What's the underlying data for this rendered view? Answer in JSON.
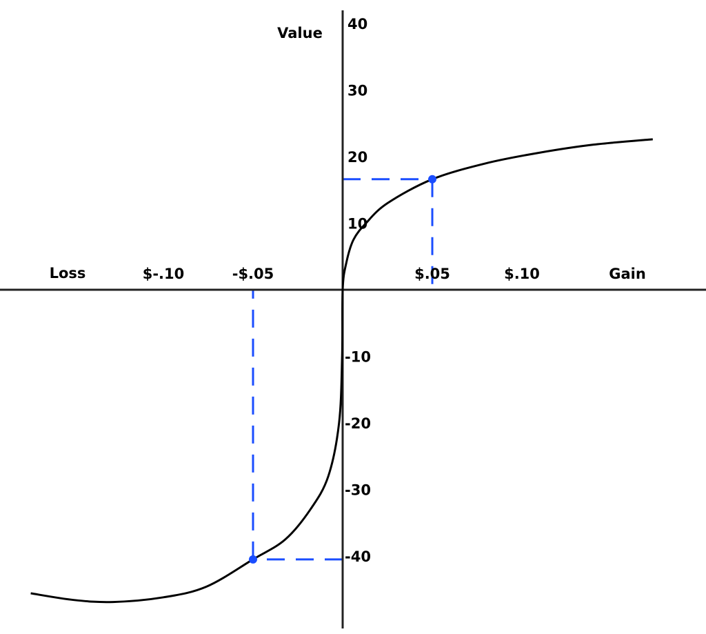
{
  "chart_data": {
    "type": "line",
    "title": "",
    "ylabel": "Value",
    "x_axis_labels": {
      "negative_end": "Loss",
      "positive_end": "Gain"
    },
    "x_ticks": [
      {
        "value": -0.1,
        "label": "$-.10"
      },
      {
        "value": -0.05,
        "label": "-$.05"
      },
      {
        "value": 0.05,
        "label": "$.05"
      },
      {
        "value": 0.1,
        "label": "$.10"
      }
    ],
    "y_ticks": [
      {
        "value": 40,
        "label": "40"
      },
      {
        "value": 30,
        "label": "30"
      },
      {
        "value": 20,
        "label": "20"
      },
      {
        "value": 10,
        "label": "10"
      },
      {
        "value": -10,
        "label": "-10"
      },
      {
        "value": -20,
        "label": "-20"
      },
      {
        "value": -30,
        "label": "-30"
      },
      {
        "value": -40,
        "label": "-40"
      }
    ],
    "xlim": [
      -0.19,
      0.2
    ],
    "ylim": [
      -51,
      42
    ],
    "grid": false,
    "series": [
      {
        "color": "#000000",
        "points": [
          [
            -0.174,
            -45.6
          ],
          [
            -0.15,
            -46.6
          ],
          [
            -0.128,
            -46.9
          ],
          [
            -0.1,
            -46.2
          ],
          [
            -0.076,
            -44.6
          ],
          [
            -0.05,
            -40.5
          ],
          [
            -0.032,
            -37.5
          ],
          [
            -0.018,
            -33
          ],
          [
            -0.008,
            -28
          ],
          [
            -0.002,
            -20
          ],
          [
            -0.0003,
            -10
          ],
          [
            0,
            0
          ],
          [
            0.002,
            4
          ],
          [
            0.006,
            7.5
          ],
          [
            0.013,
            10
          ],
          [
            0.025,
            13
          ],
          [
            0.05,
            16.6
          ],
          [
            0.08,
            19
          ],
          [
            0.11,
            20.6
          ],
          [
            0.14,
            21.8
          ],
          [
            0.173,
            22.6
          ]
        ]
      }
    ],
    "highlighted_points": [
      {
        "x": 0.05,
        "y": 16.6,
        "color": "#1a4dff"
      },
      {
        "x": -0.05,
        "y": -40.5,
        "color": "#1a4dff"
      }
    ]
  }
}
